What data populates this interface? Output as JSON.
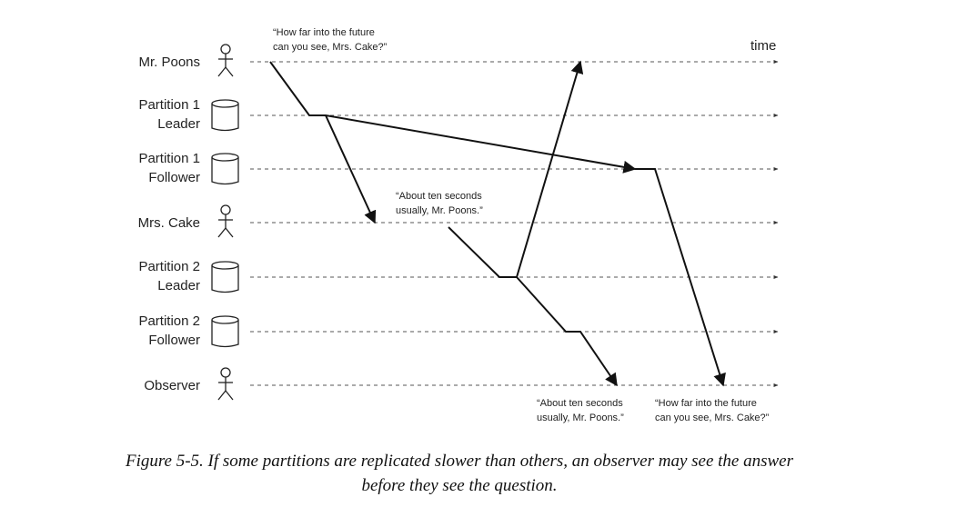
{
  "diagram": {
    "time_label": "time",
    "lanes": [
      {
        "lines": [
          "Mr. Poons"
        ]
      },
      {
        "lines": [
          "Partition 1",
          "Leader"
        ]
      },
      {
        "lines": [
          "Partition 1",
          "Follower"
        ]
      },
      {
        "lines": [
          "Mrs. Cake"
        ]
      },
      {
        "lines": [
          "Partition 2",
          "Leader"
        ]
      },
      {
        "lines": [
          "Partition 2",
          "Follower"
        ]
      },
      {
        "lines": [
          "Observer"
        ]
      }
    ],
    "annotations": [
      {
        "lines": [
          "“How far into the future",
          "can you see, Mrs. Cake?”"
        ]
      },
      {
        "lines": [
          "“About ten seconds",
          "usually, Mr. Poons.”"
        ]
      },
      {
        "lines": [
          "“About ten seconds",
          "usually, Mr. Poons.”"
        ]
      },
      {
        "lines": [
          "“How far into the future",
          "can you see, Mrs. Cake?”"
        ]
      }
    ]
  },
  "caption": {
    "lines": [
      "Figure 5-5. If some partitions are replicated slower than others, an observer may see the answer",
      "before they see the question."
    ]
  }
}
